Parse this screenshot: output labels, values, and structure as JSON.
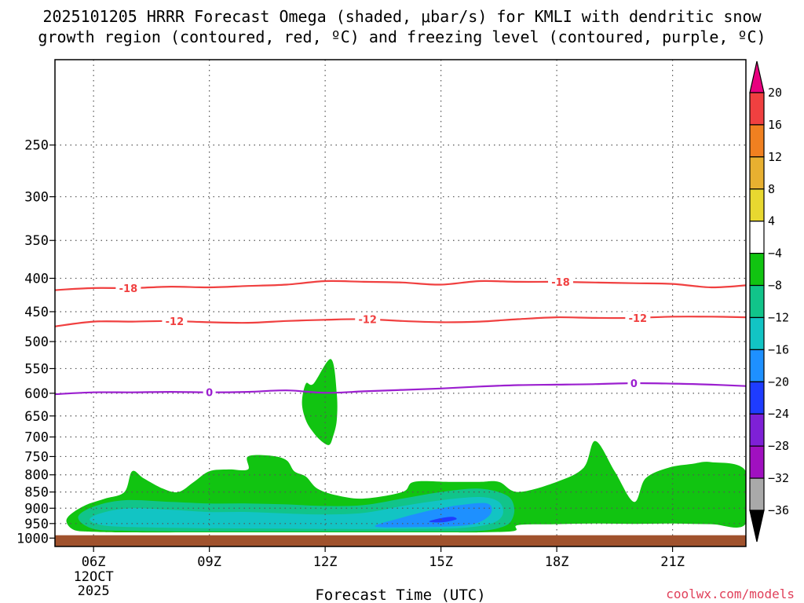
{
  "chart_data": {
    "type": "time-height cross section",
    "title_lines": [
      "2025101205 HRRR Forecast Omega (shaded, μbar/s) for KMLI with dendritic snow",
      "growth region (contoured, red, ºC) and freezing level (contoured, purple, ºC)"
    ],
    "xlabel": "Forecast Time (UTC)",
    "credit": "coolwx.com/models",
    "x_start_label": [
      "06Z",
      "12OCT",
      "2025"
    ],
    "x_ticks": [
      {
        "hour": 6,
        "label": "06Z"
      },
      {
        "hour": 9,
        "label": "09Z"
      },
      {
        "hour": 12,
        "label": "12Z"
      },
      {
        "hour": 15,
        "label": "15Z"
      },
      {
        "hour": 18,
        "label": "18Z"
      },
      {
        "hour": 21,
        "label": "21Z"
      }
    ],
    "xlim": [
      5.0,
      22.9
    ],
    "y_ticks": [
      250,
      300,
      350,
      400,
      450,
      500,
      550,
      600,
      650,
      700,
      750,
      800,
      850,
      900,
      950,
      1000
    ],
    "y_tick_labels": [
      "250",
      "300",
      "350",
      "400",
      "450",
      "500",
      "550",
      "600",
      "650",
      "700",
      "750",
      "800",
      "850",
      "900",
      "950",
      "1000"
    ],
    "ylim": [
      185,
      1030
    ],
    "y_scale": "log",
    "grid": true,
    "ground_top_hpa": 990,
    "ground_color": "#a0522d",
    "contours": [
      {
        "level_label": "-18",
        "color": "#f04040",
        "points": [
          [
            5.0,
            417
          ],
          [
            6.0,
            414
          ],
          [
            7.0,
            414
          ],
          [
            8.0,
            412
          ],
          [
            9.0,
            413
          ],
          [
            10.0,
            411
          ],
          [
            11.0,
            409
          ],
          [
            12.0,
            404
          ],
          [
            13.0,
            405
          ],
          [
            14.0,
            406
          ],
          [
            15.0,
            409
          ],
          [
            16.0,
            404
          ],
          [
            17.0,
            405
          ],
          [
            18.0,
            405
          ],
          [
            19.0,
            406
          ],
          [
            20.0,
            407
          ],
          [
            21.0,
            408
          ],
          [
            22.0,
            413
          ],
          [
            22.9,
            410
          ]
        ],
        "label_hours": [
          6.9,
          18.1
        ]
      },
      {
        "level_label": "-12",
        "color": "#f04040",
        "points": [
          [
            5.0,
            474
          ],
          [
            6.0,
            466
          ],
          [
            7.0,
            466
          ],
          [
            8.0,
            465
          ],
          [
            9.0,
            467
          ],
          [
            10.0,
            468
          ],
          [
            11.0,
            465
          ],
          [
            12.0,
            463
          ],
          [
            13.0,
            462
          ],
          [
            14.0,
            465
          ],
          [
            15.0,
            467
          ],
          [
            16.0,
            466
          ],
          [
            17.0,
            462
          ],
          [
            18.0,
            459
          ],
          [
            19.0,
            460
          ],
          [
            20.0,
            460
          ],
          [
            21.0,
            458
          ],
          [
            22.0,
            458
          ],
          [
            22.9,
            459
          ]
        ],
        "label_hours": [
          8.1,
          13.1,
          20.1
        ]
      },
      {
        "level_label": "0",
        "color": "#9b1fcf",
        "points": [
          [
            5.0,
            602
          ],
          [
            6.0,
            598
          ],
          [
            7.0,
            598
          ],
          [
            8.0,
            597
          ],
          [
            9.0,
            598
          ],
          [
            10.0,
            597
          ],
          [
            11.0,
            594
          ],
          [
            12.0,
            599
          ],
          [
            13.0,
            596
          ],
          [
            14.0,
            593
          ],
          [
            15.0,
            590
          ],
          [
            16.0,
            586
          ],
          [
            17.0,
            583
          ],
          [
            18.0,
            582
          ],
          [
            19.0,
            581
          ],
          [
            20.0,
            579
          ],
          [
            21.0,
            580
          ],
          [
            22.0,
            582
          ],
          [
            22.9,
            585
          ]
        ],
        "label_hours": [
          9.0,
          20.0
        ]
      }
    ],
    "colorbar": {
      "levels": [
        {
          "label": "20",
          "color": "#e8007f"
        },
        {
          "label": "16",
          "color": "#f04040"
        },
        {
          "label": "12",
          "color": "#f08020"
        },
        {
          "label": "8",
          "color": "#e8b030"
        },
        {
          "label": "4",
          "color": "#e8d830"
        },
        {
          "label": "−4",
          "color": "#ffffff"
        },
        {
          "label": "−8",
          "color": "#11c411"
        },
        {
          "label": "−12",
          "color": "#11c48a"
        },
        {
          "label": "−16",
          "color": "#12c4c4"
        },
        {
          "label": "−20",
          "color": "#1e90ff"
        },
        {
          "label": "−24",
          "color": "#1e3cff"
        },
        {
          "label": "−28",
          "color": "#7e20d6"
        },
        {
          "label": "−32",
          "color": "#a010c0"
        },
        {
          "label": "−36",
          "color": "#a9a9a9"
        }
      ],
      "bottom_color": "#000000"
    },
    "omega_regions": [
      {
        "range": "-8 to -4",
        "color": "#11c411",
        "points": [
          [
            5.3,
            945
          ],
          [
            5.4,
            920
          ],
          [
            5.8,
            890
          ],
          [
            6.3,
            870
          ],
          [
            6.8,
            850
          ],
          [
            7.0,
            790
          ],
          [
            7.3,
            810
          ],
          [
            7.8,
            840
          ],
          [
            8.2,
            850
          ],
          [
            8.6,
            820
          ],
          [
            9.0,
            790
          ],
          [
            9.5,
            785
          ],
          [
            10.0,
            785
          ],
          [
            10.0,
            750
          ],
          [
            10.6,
            748
          ],
          [
            11.0,
            760
          ],
          [
            11.2,
            790
          ],
          [
            11.5,
            805
          ],
          [
            11.8,
            840
          ],
          [
            12.3,
            860
          ],
          [
            13.0,
            870
          ],
          [
            14.0,
            850
          ],
          [
            14.3,
            820
          ],
          [
            15.2,
            820
          ],
          [
            16.0,
            820
          ],
          [
            16.5,
            820
          ],
          [
            17.0,
            850
          ],
          [
            18.0,
            820
          ],
          [
            18.7,
            780
          ],
          [
            19.0,
            710
          ],
          [
            19.5,
            790
          ],
          [
            20.0,
            880
          ],
          [
            20.3,
            810
          ],
          [
            20.9,
            780
          ],
          [
            21.5,
            770
          ],
          [
            22.0,
            765
          ],
          [
            22.9,
            790
          ],
          [
            22.9,
            950
          ],
          [
            22.0,
            952
          ],
          [
            21.0,
            950
          ],
          [
            20.0,
            951
          ],
          [
            19.0,
            950
          ],
          [
            18.0,
            952
          ],
          [
            17.0,
            955
          ],
          [
            16.9,
            975
          ],
          [
            16.0,
            980
          ],
          [
            15.0,
            980
          ],
          [
            12.0,
            980
          ],
          [
            9.0,
            980
          ],
          [
            7.0,
            980
          ],
          [
            6.0,
            978
          ],
          [
            5.5,
            972
          ]
        ]
      },
      {
        "range": "-8 to -4",
        "color": "#11c411",
        "points": [
          [
            11.7,
            580
          ],
          [
            12.15,
            532
          ],
          [
            12.3,
            600
          ],
          [
            12.3,
            660
          ],
          [
            12.2,
            700
          ],
          [
            12.1,
            720
          ],
          [
            11.9,
            710
          ],
          [
            11.7,
            690
          ],
          [
            11.5,
            660
          ],
          [
            11.4,
            620
          ],
          [
            11.5,
            580
          ]
        ]
      },
      {
        "range": "-12 to -8",
        "color": "#11c48a",
        "points": [
          [
            5.6,
            930
          ],
          [
            6.0,
            895
          ],
          [
            6.8,
            875
          ],
          [
            8.0,
            880
          ],
          [
            9.0,
            885
          ],
          [
            10.0,
            885
          ],
          [
            11.0,
            888
          ],
          [
            12.0,
            893
          ],
          [
            13.0,
            890
          ],
          [
            14.0,
            870
          ],
          [
            15.0,
            850
          ],
          [
            16.0,
            840
          ],
          [
            16.7,
            860
          ],
          [
            16.9,
            900
          ],
          [
            16.8,
            945
          ],
          [
            16.5,
            965
          ],
          [
            16.0,
            975
          ],
          [
            15.0,
            977
          ],
          [
            12.0,
            977
          ],
          [
            9.0,
            977
          ],
          [
            7.0,
            975
          ],
          [
            6.0,
            968
          ]
        ]
      },
      {
        "range": "-16 to -12",
        "color": "#12c4c4",
        "points": [
          [
            5.9,
            935
          ],
          [
            6.3,
            912
          ],
          [
            7.0,
            900
          ],
          [
            8.0,
            905
          ],
          [
            9.0,
            912
          ],
          [
            10.0,
            912
          ],
          [
            11.0,
            917
          ],
          [
            12.0,
            920
          ],
          [
            13.0,
            915
          ],
          [
            14.0,
            893
          ],
          [
            15.0,
            875
          ],
          [
            16.0,
            865
          ],
          [
            16.5,
            880
          ],
          [
            16.6,
            920
          ],
          [
            16.3,
            950
          ],
          [
            15.5,
            965
          ],
          [
            14.0,
            968
          ],
          [
            12.0,
            968
          ],
          [
            9.0,
            966
          ],
          [
            7.0,
            962
          ],
          [
            6.2,
            955
          ]
        ]
      },
      {
        "range": "-20 to -16",
        "color": "#1e90ff",
        "points": [
          [
            13.3,
            960
          ],
          [
            14.0,
            930
          ],
          [
            14.8,
            905
          ],
          [
            15.5,
            890
          ],
          [
            16.2,
            885
          ],
          [
            16.3,
            915
          ],
          [
            16.0,
            945
          ],
          [
            15.5,
            958
          ],
          [
            14.5,
            962
          ]
        ]
      },
      {
        "range": "-24 to -20",
        "color": "#1e3cff",
        "points": [
          [
            14.7,
            942
          ],
          [
            15.0,
            932
          ],
          [
            15.3,
            928
          ],
          [
            15.4,
            936
          ],
          [
            15.1,
            945
          ],
          [
            14.8,
            946
          ]
        ]
      }
    ]
  }
}
